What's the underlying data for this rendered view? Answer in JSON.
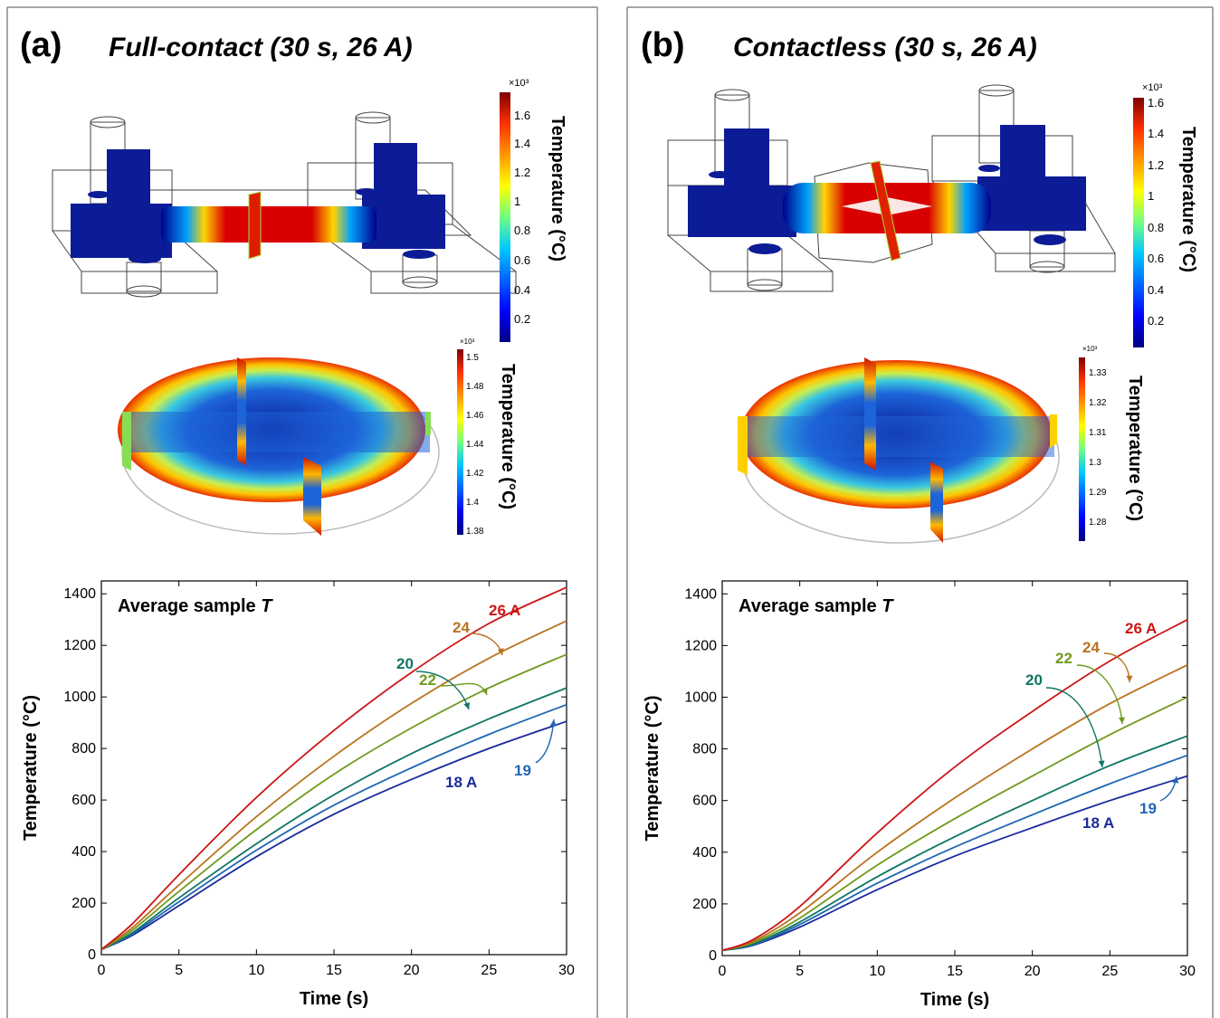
{
  "panels": [
    {
      "label": "(a)",
      "title": "Full-contact (30 s, 26 A)",
      "top_colorbar": {
        "label": "Temperature (°C)",
        "exponent": "×10³",
        "ticks": [
          "0.2",
          "0.4",
          "0.6",
          "0.8",
          "1",
          "1.2",
          "1.4",
          "1.6"
        ]
      },
      "sample_colorbar": {
        "label": "Temperature (°C)",
        "exponent": "×10³",
        "ticks": [
          "1.38",
          "1.4",
          "1.42",
          "1.44",
          "1.46",
          "1.48",
          "1.5"
        ]
      }
    },
    {
      "label": "(b)",
      "title": "Contactless (30 s, 26 A)",
      "top_colorbar": {
        "label": "Temperature (°C)",
        "exponent": "×10³",
        "ticks": [
          "0.2",
          "0.4",
          "0.6",
          "0.8",
          "1",
          "1.2",
          "1.4",
          "1.6"
        ]
      },
      "sample_colorbar": {
        "label": "Temperature (°C)",
        "exponent": "×10³",
        "ticks": [
          "1.28",
          "1.29",
          "1.3",
          "1.31",
          "1.32",
          "1.33"
        ]
      }
    }
  ],
  "colors": {
    "18 A": "#1a2a9c",
    "19": "#1f66b3",
    "20": "#0e7565",
    "22": "#6f9a1e",
    "24": "#b8731e",
    "26 A": "#cc1616"
  },
  "chart_data": [
    {
      "type": "line",
      "inner_title": "Average sample T",
      "xlabel": "Time (s)",
      "ylabel": "Temperature (°C)",
      "xlim": [
        0,
        30
      ],
      "ylim": [
        0,
        1450
      ],
      "xticks": [
        0,
        5,
        10,
        15,
        20,
        25,
        30
      ],
      "yticks": [
        0,
        200,
        400,
        600,
        800,
        1000,
        1200,
        1400
      ],
      "x": [
        0,
        2,
        5,
        10,
        15,
        20,
        25,
        30
      ],
      "series": [
        {
          "name": "18 A",
          "values": [
            20,
            75,
            190,
            380,
            545,
            680,
            800,
            905
          ]
        },
        {
          "name": "19",
          "values": [
            20,
            80,
            205,
            405,
            580,
            725,
            855,
            970
          ]
        },
        {
          "name": "20",
          "values": [
            20,
            85,
            220,
            430,
            620,
            780,
            915,
            1035
          ]
        },
        {
          "name": "22",
          "values": [
            20,
            95,
            245,
            485,
            700,
            880,
            1035,
            1165
          ]
        },
        {
          "name": "24",
          "values": [
            20,
            105,
            270,
            535,
            770,
            975,
            1150,
            1295
          ]
        },
        {
          "name": "26 A",
          "values": [
            20,
            120,
            310,
            610,
            870,
            1095,
            1285,
            1425
          ]
        }
      ]
    },
    {
      "type": "line",
      "inner_title": "Average sample T",
      "xlabel": "Time (s)",
      "ylabel": "Temperature (°C)",
      "xlim": [
        0,
        30
      ],
      "ylim": [
        0,
        1450
      ],
      "xticks": [
        0,
        5,
        10,
        15,
        20,
        25,
        30
      ],
      "yticks": [
        0,
        200,
        400,
        600,
        800,
        1000,
        1200,
        1400
      ],
      "x": [
        0,
        2,
        5,
        10,
        15,
        20,
        25,
        30
      ],
      "series": [
        {
          "name": "18 A",
          "values": [
            20,
            40,
            110,
            255,
            385,
            495,
            600,
            695
          ]
        },
        {
          "name": "19",
          "values": [
            20,
            42,
            120,
            280,
            420,
            545,
            665,
            775
          ]
        },
        {
          "name": "20",
          "values": [
            20,
            45,
            130,
            305,
            460,
            600,
            735,
            850
          ]
        },
        {
          "name": "22",
          "values": [
            20,
            50,
            145,
            350,
            530,
            695,
            855,
            1000
          ]
        },
        {
          "name": "24",
          "values": [
            20,
            55,
            165,
            400,
            610,
            800,
            975,
            1125
          ]
        },
        {
          "name": "26 A",
          "values": [
            20,
            62,
            190,
            475,
            730,
            945,
            1140,
            1300
          ]
        }
      ]
    }
  ]
}
